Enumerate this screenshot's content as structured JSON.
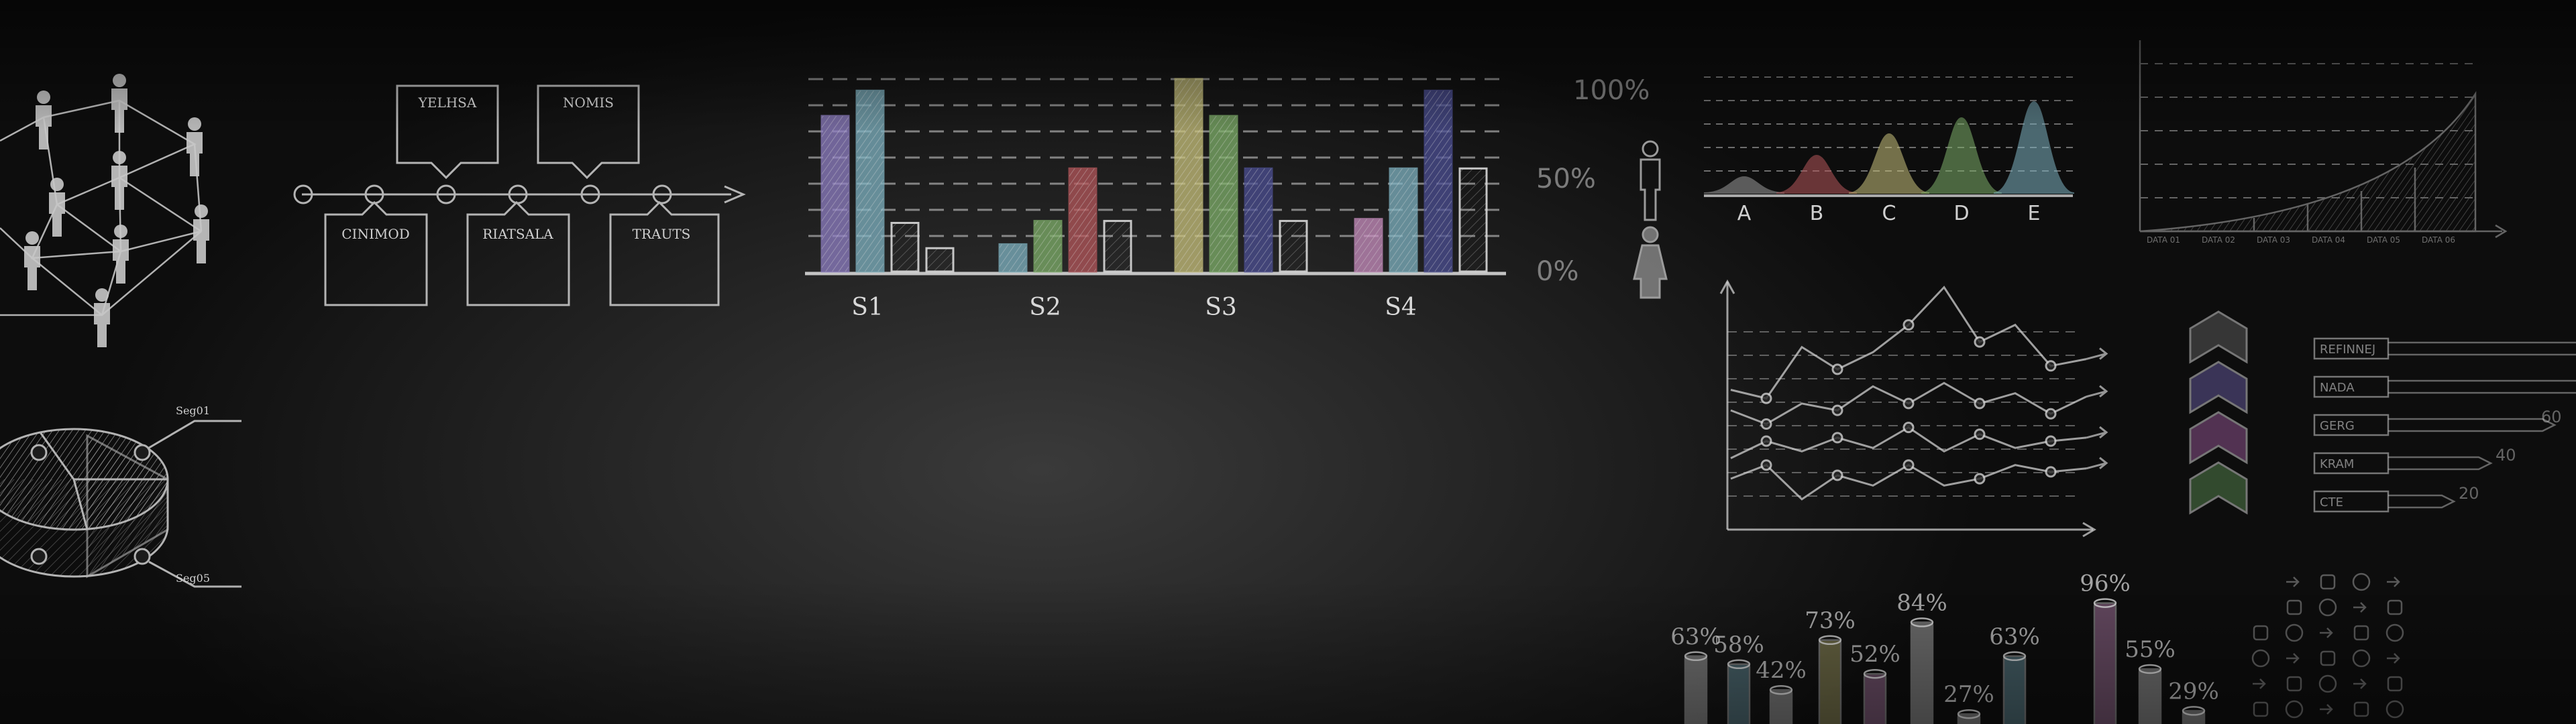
{
  "colors": {
    "chalk": "#d8d8d8",
    "purple": "#8f7fc4",
    "teal": "#7fb3c2",
    "yellow": "#c9c27c",
    "green": "#7fb06a",
    "red": "#b5575b",
    "navy": "#4c4f94",
    "pink": "#c98fc0"
  },
  "timeline": {
    "top_labels": [
      "YELHSA",
      "NOMIS"
    ],
    "bottom_labels": [
      "CINIMOD",
      "RIATSALA",
      "TRAUTS"
    ]
  },
  "pie": {
    "labels": [
      "Seg01",
      "Seg05"
    ]
  },
  "main_bar_chart": {
    "chart_data": {
      "type": "bar",
      "categories": [
        "S1",
        "S2",
        "S3",
        "S4"
      ],
      "tick_labels": [
        "100%",
        "50%",
        "0%"
      ],
      "series_colors": [
        "purple",
        "teal",
        "chalk",
        "chalk",
        "teal",
        "green",
        "red",
        "chalk",
        "yellow",
        "green",
        "navy",
        "chalk",
        "pink",
        "teal",
        "navy",
        "chalk"
      ],
      "values": [
        [
          80,
          93,
          25,
          12
        ],
        [
          14,
          26,
          53,
          26
        ],
        [
          99,
          80,
          53,
          26
        ],
        [
          27,
          53,
          93,
          53
        ]
      ],
      "ylim": [
        0,
        100
      ]
    }
  },
  "mountain_chart": {
    "chart_data": {
      "type": "area",
      "categories": [
        "A",
        "B",
        "C",
        "D",
        "E"
      ],
      "values": [
        15,
        35,
        55,
        70,
        85
      ]
    }
  },
  "data_chart": {
    "labels": [
      "DATA 01",
      "DATA 02",
      "DATA 03",
      "DATA 04",
      "DATA 05",
      "DATA 06"
    ]
  },
  "line_chart": {
    "chart_data": {
      "type": "line",
      "series": [
        {
          "values": [
            70,
            65,
            95,
            82,
            92,
            108,
            130,
            98,
            108,
            84,
            88
          ]
        },
        {
          "values": [
            58,
            50,
            62,
            58,
            72,
            62,
            74,
            62,
            68,
            56,
            66
          ]
        },
        {
          "values": [
            30,
            40,
            34,
            42,
            36,
            48,
            34,
            44,
            36,
            40,
            42
          ]
        },
        {
          "values": [
            18,
            26,
            6,
            20,
            14,
            26,
            14,
            18,
            26,
            22,
            24
          ]
        }
      ]
    }
  },
  "bars_right": {
    "labels": [
      "REFINNEJ",
      "NADA",
      "GERG",
      "KRAM",
      "CTE"
    ],
    "numbers": [
      "60",
      "40",
      "20"
    ]
  },
  "tubes": {
    "chart_data": {
      "type": "bar",
      "labels": [
        "63%",
        "58%",
        "42%",
        "73%",
        "52%",
        "84%",
        "27%",
        "63%",
        "96%",
        "55%",
        "29%"
      ],
      "values": [
        63,
        58,
        42,
        73,
        52,
        84,
        27,
        63,
        96,
        55,
        29
      ]
    }
  }
}
